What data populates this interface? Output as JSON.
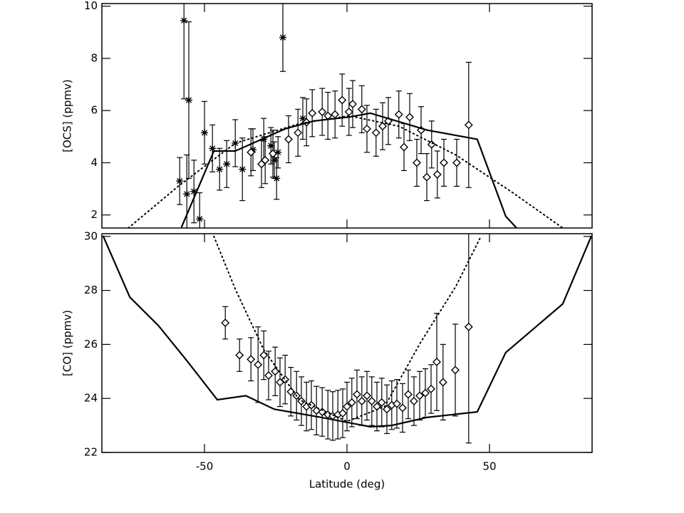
{
  "chart_data": [
    {
      "type": "scatter",
      "ylabel": "[OCS]  (ppmv)",
      "xlim": [
        -86,
        86
      ],
      "xticks": [
        -50,
        0,
        50
      ],
      "ylim": [
        1.5,
        10.1
      ],
      "yticks": [
        2,
        4,
        6,
        8,
        10
      ],
      "series": [
        {
          "marker": "asterisk",
          "x": [
            -58.7,
            -57.2,
            -56.2,
            -55.5,
            -53.7,
            -51.7,
            -50,
            -47.2,
            -44.7,
            -42.2,
            -39.2,
            -36.7,
            -33,
            -29.2,
            -26.7,
            -25.5,
            -24.7,
            -24.2,
            -22.5,
            -15.5
          ],
          "values": [
            3.3,
            9.45,
            2.8,
            6.4,
            2.9,
            1.85,
            5.15,
            4.55,
            3.75,
            3.95,
            4.75,
            3.75,
            4.5,
            4.9,
            4.65,
            4.1,
            3.4,
            4.4,
            8.8,
            5.7
          ],
          "errors": [
            0.9,
            3,
            1.5,
            3,
            1.2,
            1,
            1.2,
            0.9,
            0.8,
            0.9,
            0.9,
            1.2,
            0.8,
            0.8,
            0.7,
            0.7,
            0.8,
            0.6,
            1.3,
            0.8
          ]
        },
        {
          "marker": "diamond",
          "x": [
            -33.7,
            -30,
            -28.7,
            -26,
            -20.5,
            -17.2,
            -14.2,
            -12.2,
            -8.7,
            -6.7,
            -4.2,
            -1.7,
            0.7,
            2,
            5.2,
            7,
            10.2,
            12.5,
            14.5,
            18.2,
            20,
            22,
            24.5,
            26,
            28,
            29.7,
            31.7,
            34,
            38.5,
            42.7
          ],
          "values": [
            4.4,
            3.95,
            4.1,
            4.35,
            4.9,
            5.15,
            5.55,
            5.9,
            5.95,
            5.8,
            5.85,
            6.4,
            5.95,
            6.25,
            6.05,
            5.3,
            5.15,
            5.4,
            5.6,
            5.85,
            4.6,
            5.75,
            4,
            5.25,
            3.45,
            4.7,
            3.55,
            4,
            4,
            5.45
          ],
          "errors": [
            0.9,
            0.9,
            0.9,
            0.9,
            0.9,
            0.9,
            0.9,
            0.9,
            0.9,
            0.9,
            0.9,
            1,
            0.9,
            0.9,
            0.9,
            0.9,
            0.9,
            0.9,
            0.9,
            0.9,
            0.9,
            0.9,
            0.9,
            0.9,
            0.9,
            0.9,
            0.9,
            0.9,
            0.9,
            2.4
          ]
        },
        {
          "style": "solid",
          "x": [
            -58,
            -46.7,
            -39.2,
            -21.7,
            -11.7,
            0.7,
            8.2,
            28.2,
            45.7,
            55.7,
            59.5
          ],
          "values": [
            1.55,
            4.45,
            4.45,
            5.3,
            5.6,
            5.75,
            5.9,
            5.25,
            4.9,
            1.95,
            1.5
          ]
        },
        {
          "style": "dotted",
          "x": [
            -76.7,
            -59.2,
            -39.2,
            -16.7,
            0.7,
            18.2,
            38.2,
            58.2,
            75.7
          ],
          "values": [
            1.5,
            3.1,
            4.75,
            5.5,
            5.8,
            5.4,
            4.3,
            2.85,
            1.5
          ]
        }
      ]
    },
    {
      "type": "scatter",
      "ylabel": "[CO]  (ppmv)",
      "xlabel": "Latitude  (deg)",
      "xlim": [
        -86,
        86
      ],
      "xticks": [
        -50,
        0,
        50
      ],
      "ylim": [
        22,
        30.1
      ],
      "yticks": [
        22,
        24,
        26,
        28,
        30
      ],
      "series": [
        {
          "marker": "diamond",
          "x": [
            -42.7,
            -37.7,
            -33.7,
            -31.2,
            -29.2,
            -27.5,
            -25.2,
            -23.5,
            -21.7,
            -19.7,
            -17.7,
            -16,
            -14.2,
            -12.5,
            -10.7,
            -8.7,
            -6.7,
            -5,
            -3.2,
            -1.5,
            0,
            1.7,
            3.5,
            5.2,
            7,
            8.7,
            10.5,
            12.2,
            14,
            15.7,
            17.5,
            19.5,
            21.5,
            23.5,
            25.5,
            27.5,
            29.5,
            31.5,
            33.7,
            38,
            42.7
          ],
          "values": [
            26.8,
            25.6,
            25.45,
            25.25,
            25.6,
            24.85,
            25,
            24.6,
            24.7,
            24.25,
            24.1,
            23.9,
            23.7,
            23.75,
            23.55,
            23.5,
            23.4,
            23.35,
            23.4,
            23.45,
            23.7,
            23.85,
            24.15,
            23.9,
            24.1,
            23.9,
            23.7,
            23.85,
            23.6,
            23.75,
            23.8,
            23.65,
            24.15,
            23.9,
            24.1,
            24.2,
            24.35,
            25.35,
            24.6,
            25.05,
            26.65
          ],
          "errors": [
            0.6,
            0.6,
            0.8,
            1.4,
            0.9,
            0.9,
            0.9,
            0.9,
            0.9,
            0.9,
            0.9,
            0.9,
            0.9,
            0.9,
            0.9,
            0.9,
            0.9,
            0.9,
            0.9,
            0.9,
            0.9,
            0.9,
            0.9,
            0.9,
            0.9,
            0.9,
            0.9,
            0.9,
            0.9,
            0.9,
            0.9,
            0.9,
            0.9,
            0.9,
            0.9,
            0.9,
            0.9,
            1.8,
            1.4,
            1.7,
            4.3
          ]
        },
        {
          "style": "solid",
          "x": [
            -85.5,
            -76.2,
            -66.2,
            -56.2,
            -45.5,
            -35.5,
            -25.5,
            -9.2,
            8.2,
            15.7,
            28.2,
            45.7,
            55.7,
            65.7,
            75.7,
            85.7
          ],
          "values": [
            30,
            27.75,
            26.7,
            25.4,
            23.95,
            24.1,
            23.6,
            23.3,
            22.95,
            23,
            23.3,
            23.5,
            25.7,
            26.6,
            27.5,
            30
          ]
        },
        {
          "style": "dotted",
          "x": [
            -46.7,
            -39.2,
            -29.2,
            -16.7,
            0,
            13.2,
            25.7,
            38.2,
            47
          ],
          "values": [
            30,
            28.05,
            25.8,
            23.95,
            23.15,
            23.7,
            26.05,
            28.15,
            30
          ]
        }
      ]
    }
  ]
}
